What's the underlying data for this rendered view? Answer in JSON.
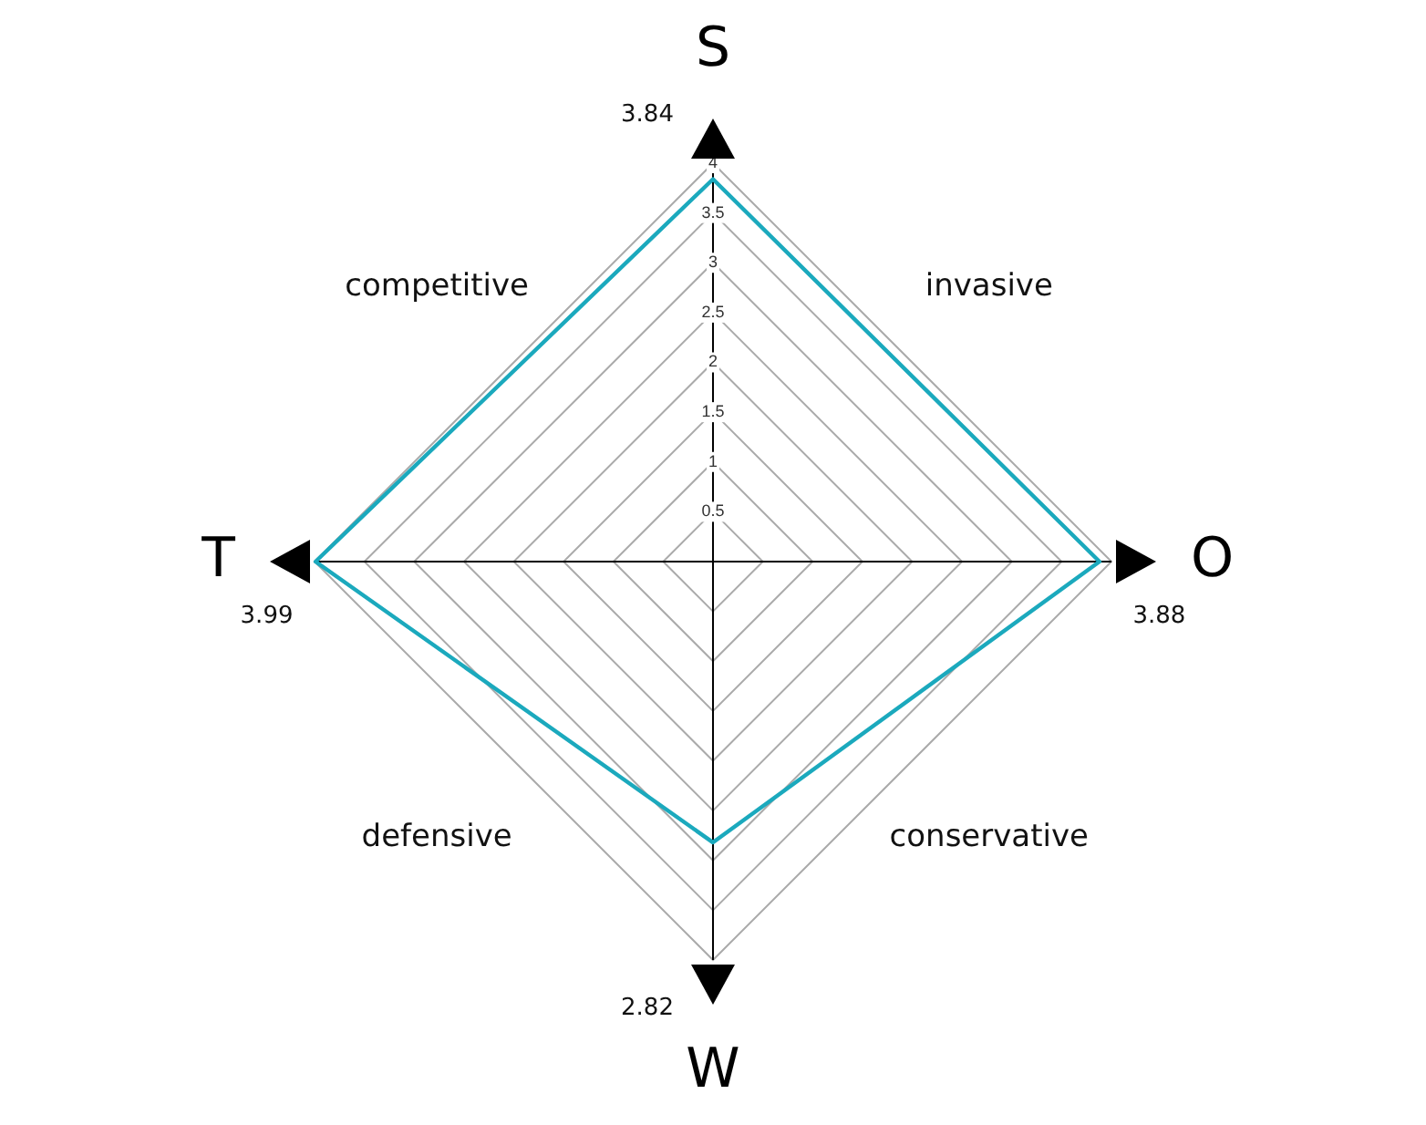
{
  "chart_data": {
    "type": "radar",
    "categories": [
      "S",
      "O",
      "W",
      "T"
    ],
    "series": [
      {
        "color": "#1ba9bd",
        "values": [
          3.84,
          3.88,
          2.82,
          3.99
        ]
      }
    ],
    "ylim": [
      0,
      4
    ],
    "yticks": [
      0.5,
      1,
      1.5,
      2,
      2.5,
      3,
      3.5,
      4
    ],
    "grid": true,
    "legend": false,
    "marker": "none",
    "line_style": "solid",
    "annotations": [
      "invasive",
      "conservative",
      "defensive",
      "competitive",
      {
        "text": "3.84",
        "x": "S"
      },
      {
        "text": "3.88",
        "x": "O"
      },
      {
        "text": "2.82",
        "x": "W"
      },
      {
        "text": "3.99",
        "x": "T"
      }
    ]
  }
}
